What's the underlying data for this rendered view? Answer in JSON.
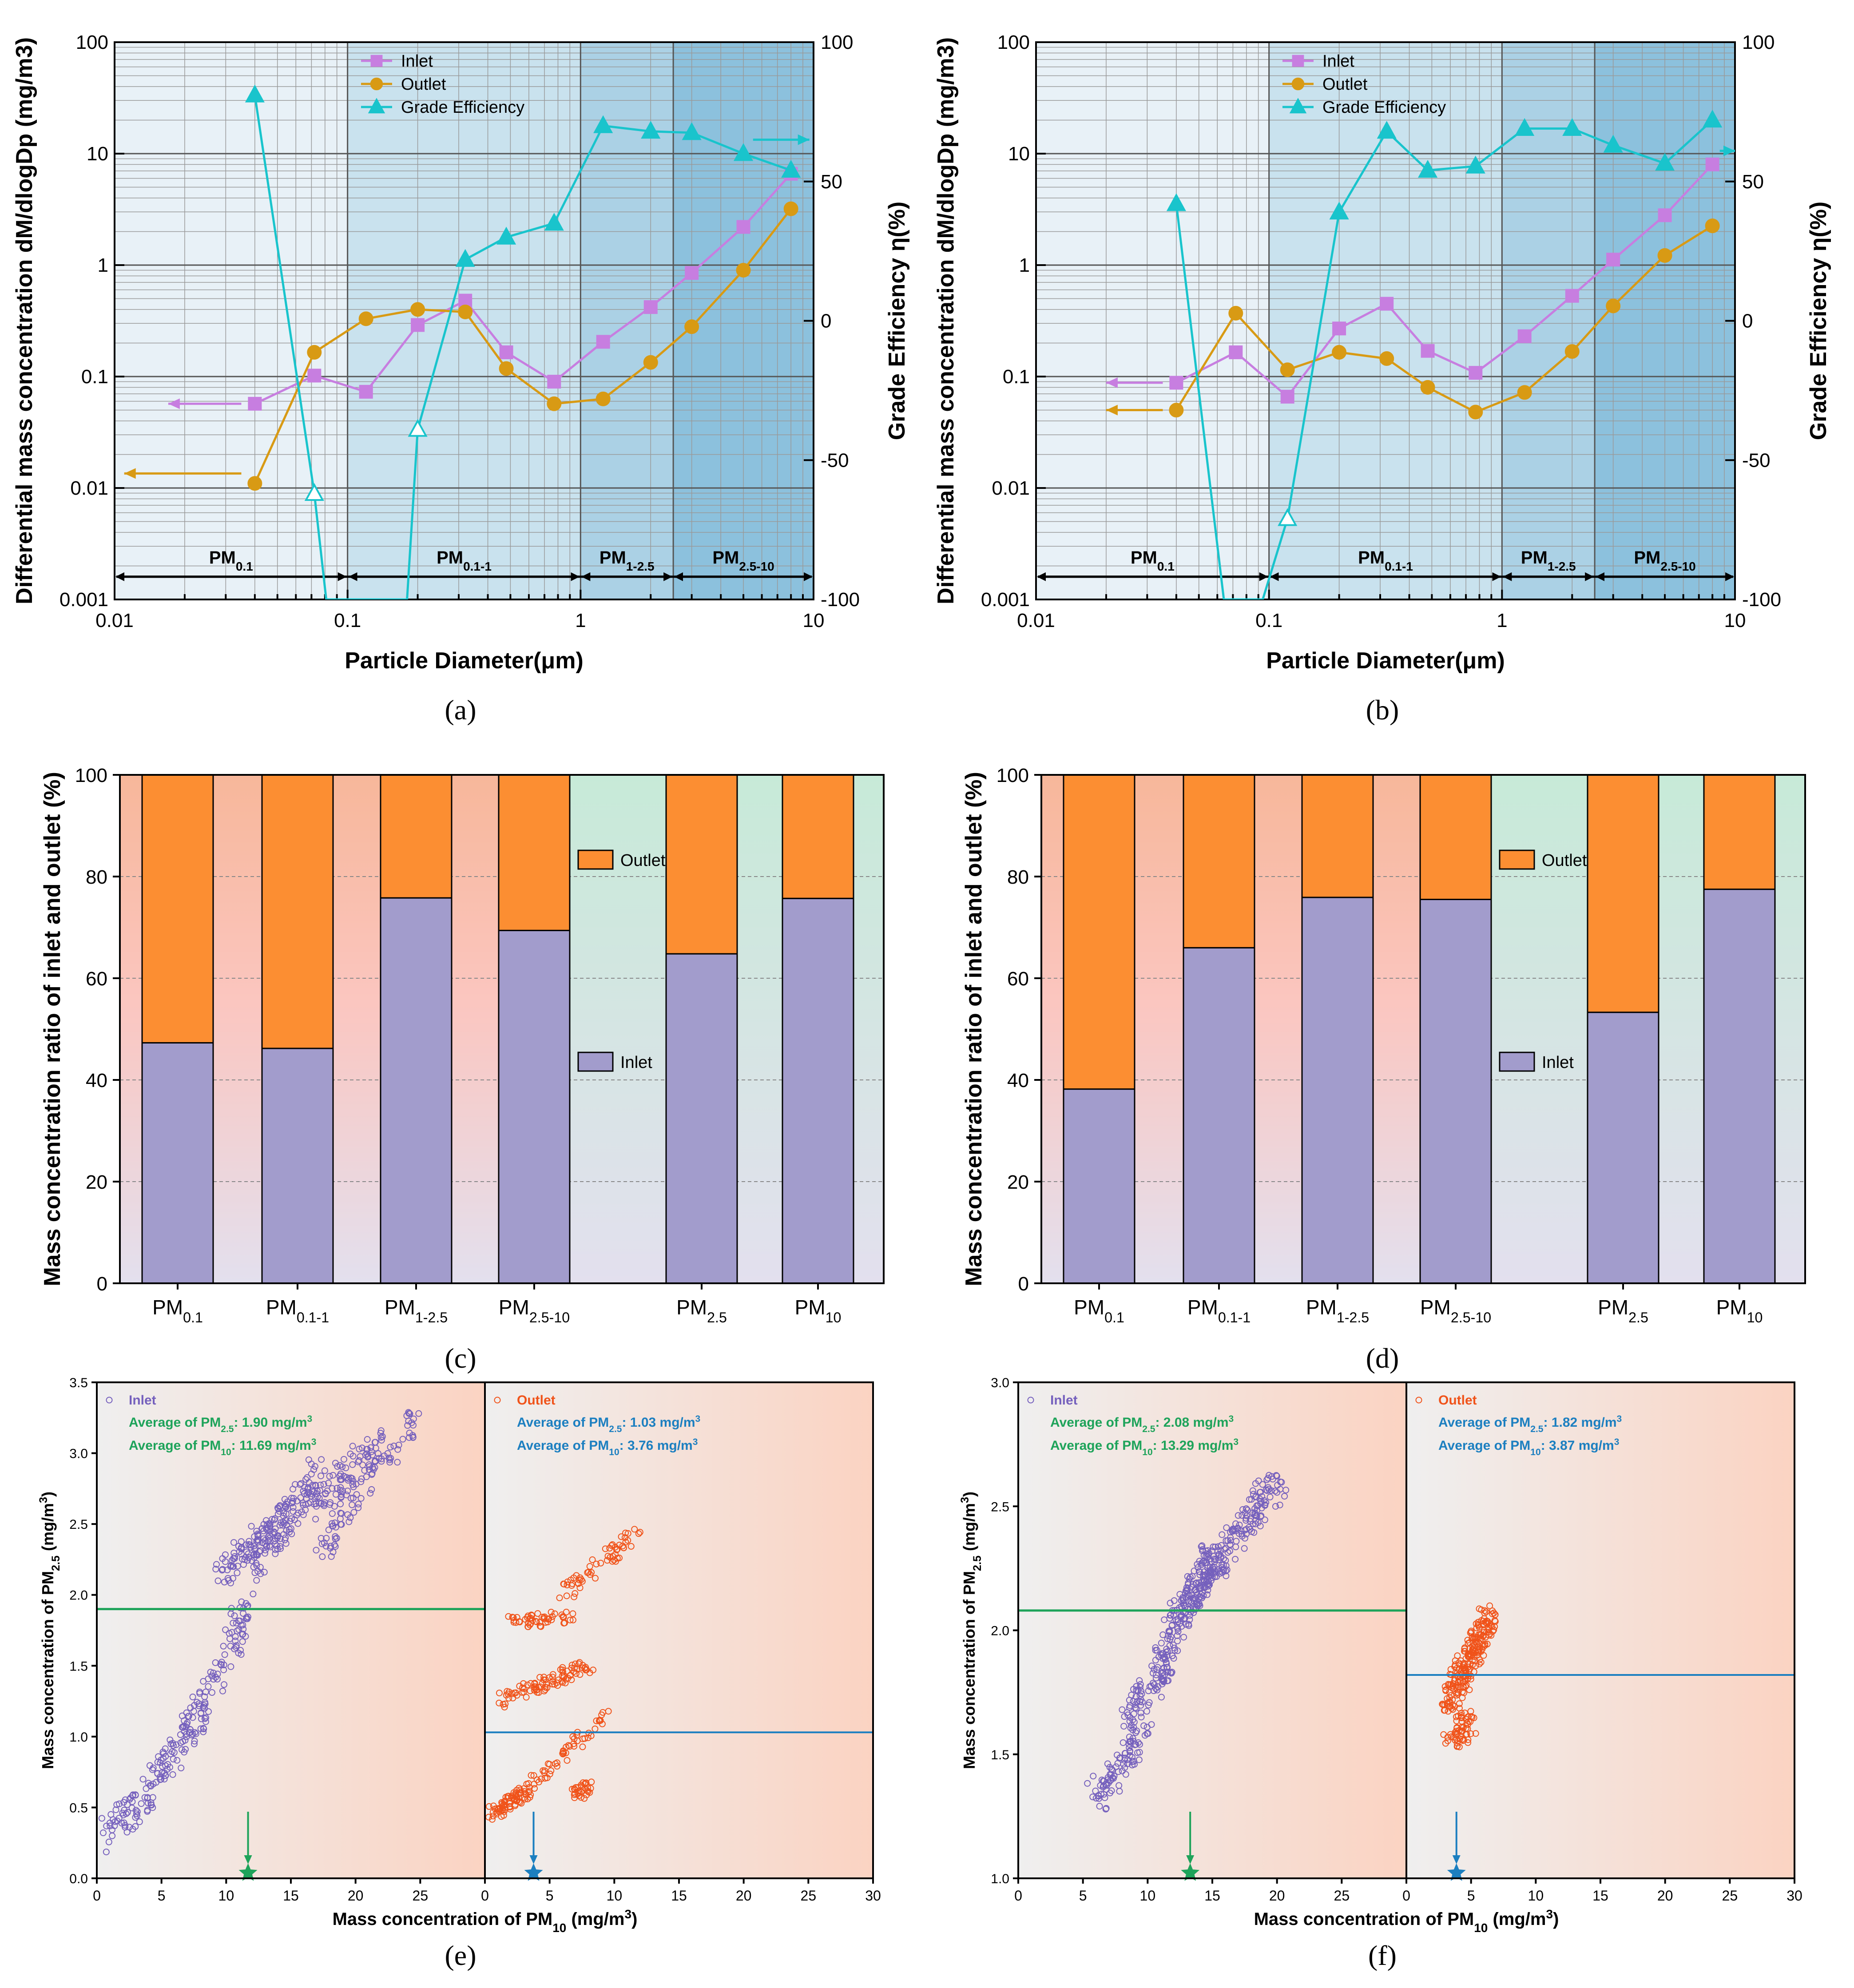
{
  "colors": {
    "inlet_line": "#c77ee0",
    "inlet_marker": "#c77ee0",
    "outlet": "#d89a14",
    "grade": "#19c4cc",
    "bar_inlet": "#a29ccc",
    "bar_outlet": "#fc8e32",
    "scatter_inlet": "#7560bd",
    "scatter_outlet": "#f0531a",
    "avg_green": "#1ea35a",
    "avg_blue": "#1c7fc0"
  },
  "chart_data": [
    {
      "id": "a",
      "type": "line",
      "caption": "(a)",
      "xlabel": "Particle Diameter(μm)",
      "ylabel": "Differential mass concentration dM/dlogDp (mg/m3)",
      "ylabel2": "Grade Efficiency η(%)",
      "xscale": "log",
      "xlim": [
        0.01,
        10
      ],
      "yscale": "log",
      "ylim": [
        0.001,
        100
      ],
      "y2lim": [
        -100,
        100
      ],
      "xticks": [
        "0.01",
        "0.1",
        "1",
        "10"
      ],
      "yticks": [
        "0.001",
        "0.01",
        "0.1",
        "1",
        "10",
        "100"
      ],
      "y2ticks": [
        "-100",
        "-50",
        "0",
        "50",
        "100"
      ],
      "legend": [
        "Inlet",
        "Outlet",
        "Grade Efficiency"
      ],
      "bands": [
        {
          "label": "PM0.1",
          "main": "PM",
          "sub": "0.1",
          "from": 0.01,
          "to": 0.1
        },
        {
          "label": "PM0.1-1",
          "main": "PM",
          "sub": "0.1-1",
          "from": 0.1,
          "to": 1
        },
        {
          "label": "PM1-2.5",
          "main": "PM",
          "sub": "1-2.5",
          "from": 1,
          "to": 2.5
        },
        {
          "label": "PM2.5-10",
          "main": "PM",
          "sub": "2.5-10",
          "from": 2.5,
          "to": 10
        }
      ],
      "series": [
        {
          "name": "Inlet",
          "axis": "left",
          "x": [
            0.04,
            0.072,
            0.12,
            0.2,
            0.32,
            0.48,
            0.77,
            1.25,
            2.0,
            3.0,
            5.0,
            8.0
          ],
          "values": [
            0.057,
            0.102,
            0.073,
            0.29,
            0.48,
            0.165,
            0.09,
            0.205,
            0.42,
            0.85,
            2.2,
            6.6
          ]
        },
        {
          "name": "Outlet",
          "axis": "left",
          "x": [
            0.04,
            0.072,
            0.12,
            0.2,
            0.32,
            0.48,
            0.77,
            1.25,
            2.0,
            3.0,
            5.0,
            8.0
          ],
          "values": [
            0.011,
            0.165,
            0.33,
            0.4,
            0.38,
            0.118,
            0.057,
            0.063,
            0.134,
            0.28,
            0.9,
            3.2
          ]
        },
        {
          "name": "Grade Efficiency",
          "axis": "right",
          "x": [
            0.04,
            0.072,
            0.081,
            0.18,
            0.2,
            0.32,
            0.48,
            0.77,
            1.25,
            2.0,
            3.0,
            5.0,
            8.0
          ],
          "values": [
            81,
            -62,
            -100,
            -100,
            -39,
            22,
            30,
            35,
            70,
            68,
            67.5,
            60,
            54
          ],
          "hollow": [
            1,
            4
          ],
          "offplot": [
            2,
            3
          ]
        }
      ],
      "axis_arrows": [
        {
          "series": "Inlet",
          "to": "left",
          "x_from": 0.035,
          "x_to": 0.017,
          "value": 0.057
        },
        {
          "series": "Outlet",
          "to": "left",
          "x_from": 0.035,
          "x_to": 0.011,
          "value": 0.0135
        },
        {
          "series": "Grade Efficiency",
          "to": "right",
          "x_from": 5.5,
          "x_to": 9.6,
          "value": 65
        }
      ]
    },
    {
      "id": "b",
      "type": "line",
      "caption": "(b)",
      "xlabel": "Particle Diameter(μm)",
      "ylabel": "Differential mass concentration dM/dlogDp (mg/m3)",
      "ylabel2": "Grade Efficiency η(%)",
      "xscale": "log",
      "xlim": [
        0.01,
        10
      ],
      "yscale": "log",
      "ylim": [
        0.001,
        100
      ],
      "y2lim": [
        -100,
        100
      ],
      "xticks": [
        "0.01",
        "0.1",
        "1",
        "10"
      ],
      "yticks": [
        "0.001",
        "0.01",
        "0.1",
        "1",
        "10",
        "100"
      ],
      "y2ticks": [
        "-100",
        "-50",
        "0",
        "50",
        "100"
      ],
      "legend": [
        "Inlet",
        "Outlet",
        "Grade Efficiency"
      ],
      "bands": [
        {
          "label": "PM0.1",
          "main": "PM",
          "sub": "0.1",
          "from": 0.01,
          "to": 0.1
        },
        {
          "label": "PM0.1-1",
          "main": "PM",
          "sub": "0.1-1",
          "from": 0.1,
          "to": 1
        },
        {
          "label": "PM1-2.5",
          "main": "PM",
          "sub": "1-2.5",
          "from": 1,
          "to": 2.5
        },
        {
          "label": "PM2.5-10",
          "main": "PM",
          "sub": "2.5-10",
          "from": 2.5,
          "to": 10
        }
      ],
      "series": [
        {
          "name": "Inlet",
          "axis": "left",
          "x": [
            0.04,
            0.072,
            0.12,
            0.2,
            0.32,
            0.48,
            0.77,
            1.25,
            2.0,
            3.0,
            5.0,
            8.0
          ],
          "values": [
            0.088,
            0.165,
            0.066,
            0.27,
            0.45,
            0.17,
            0.108,
            0.23,
            0.53,
            1.12,
            2.8,
            8.0
          ]
        },
        {
          "name": "Outlet",
          "axis": "left",
          "x": [
            0.04,
            0.072,
            0.12,
            0.2,
            0.32,
            0.48,
            0.77,
            1.25,
            2.0,
            3.0,
            5.0,
            8.0
          ],
          "values": [
            0.05,
            0.37,
            0.115,
            0.165,
            0.145,
            0.08,
            0.048,
            0.072,
            0.168,
            0.43,
            1.22,
            2.25
          ]
        },
        {
          "name": "Grade Efficiency",
          "axis": "right",
          "x": [
            0.04,
            0.064,
            0.094,
            0.12,
            0.2,
            0.32,
            0.48,
            0.77,
            1.25,
            2.0,
            3.0,
            5.0,
            8.0
          ],
          "values": [
            42,
            -100,
            -100,
            -71,
            39,
            68,
            54,
            55.5,
            69,
            69,
            63,
            56.5,
            72
          ],
          "hollow": [
            3
          ],
          "offplot": [
            1,
            2
          ]
        }
      ],
      "axis_arrows": [
        {
          "series": "Inlet",
          "to": "left",
          "x_from": 0.035,
          "x_to": 0.02,
          "value": 0.088
        },
        {
          "series": "Outlet",
          "to": "left",
          "x_from": 0.035,
          "x_to": 0.02,
          "value": 0.05
        },
        {
          "series": "Grade Efficiency",
          "to": "right",
          "x_from": 8.6,
          "x_to": 10,
          "value": 61
        }
      ]
    },
    {
      "id": "c",
      "type": "bar",
      "stacked": true,
      "caption": "(c)",
      "ylabel": "Mass concentration ratio of inlet and outlet (%)",
      "ylim": [
        0,
        100
      ],
      "yticks": [
        "0",
        "20",
        "40",
        "60",
        "80",
        "100"
      ],
      "categories": [
        {
          "label": "PM0.1",
          "main": "PM",
          "sub": "0.1"
        },
        {
          "label": "PM0.1-1",
          "main": "PM",
          "sub": "0.1-1"
        },
        {
          "label": "PM1-2.5",
          "main": "PM",
          "sub": "1-2.5"
        },
        {
          "label": "PM2.5-10",
          "main": "PM",
          "sub": "2.5-10"
        },
        {
          "label": "PM2.5",
          "main": "PM",
          "sub": "2.5"
        },
        {
          "label": "PM10",
          "main": "PM",
          "sub": "10"
        }
      ],
      "series": [
        {
          "name": "Inlet",
          "values": [
            47.3,
            46.2,
            75.8,
            69.4,
            64.8,
            75.7
          ]
        },
        {
          "name": "Outlet",
          "values": [
            52.7,
            53.8,
            24.2,
            30.6,
            35.2,
            24.3
          ]
        }
      ],
      "legend": [
        "Outlet",
        "Inlet"
      ]
    },
    {
      "id": "d",
      "type": "bar",
      "stacked": true,
      "caption": "(d)",
      "ylabel": "Mass concentration ratio of inlet and outlet (%)",
      "ylim": [
        0,
        100
      ],
      "yticks": [
        "0",
        "20",
        "40",
        "60",
        "80",
        "100"
      ],
      "categories": [
        {
          "label": "PM0.1",
          "main": "PM",
          "sub": "0.1"
        },
        {
          "label": "PM0.1-1",
          "main": "PM",
          "sub": "0.1-1"
        },
        {
          "label": "PM1-2.5",
          "main": "PM",
          "sub": "1-2.5"
        },
        {
          "label": "PM2.5-10",
          "main": "PM",
          "sub": "2.5-10"
        },
        {
          "label": "PM2.5",
          "main": "PM",
          "sub": "2.5"
        },
        {
          "label": "PM10",
          "main": "PM",
          "sub": "10"
        }
      ],
      "series": [
        {
          "name": "Inlet",
          "values": [
            38.2,
            66.0,
            75.9,
            75.5,
            53.3,
            77.5
          ]
        },
        {
          "name": "Outlet",
          "values": [
            61.8,
            34.0,
            24.1,
            24.5,
            46.7,
            22.5
          ]
        }
      ],
      "legend": [
        "Outlet",
        "Inlet"
      ]
    },
    {
      "id": "e",
      "type": "scatter",
      "caption": "(e)",
      "xlabel": "Mass concentration of PM10 (mg/m3)",
      "ylabel": "Mass concentration of PM2.5 (mg/m3)",
      "xlim": [
        0,
        30
      ],
      "ylim": [
        0,
        3.5
      ],
      "xticks_left": [
        "0",
        "5",
        "10",
        "15",
        "20",
        "25"
      ],
      "xticks_right": [
        "0",
        "5",
        "10",
        "15",
        "20",
        "25",
        "30"
      ],
      "yticks": [
        "0.0",
        "0.5",
        "1.0",
        "1.5",
        "2.0",
        "2.5",
        "3.0",
        "3.5"
      ],
      "inlet": {
        "legend": "Inlet",
        "avg_pm25": 1.9,
        "avg_pm10": 11.69,
        "lines": [
          {
            "prefix": "Average of PM",
            "sub": "2.5",
            "text": ": 1.90 mg/m",
            "sup": "3"
          },
          {
            "prefix": "Average of PM",
            "sub": "10",
            "text": ": 11.69 mg/m",
            "sup": "3"
          }
        ],
        "segments": [
          [
            0.5,
            0.3,
            3.5,
            0.55,
            50
          ],
          [
            3.5,
            0.55,
            9.0,
            1.3,
            120
          ],
          [
            9,
            1.3,
            11.5,
            1.95,
            60
          ],
          [
            9.5,
            2.15,
            15,
            2.55,
            90
          ],
          [
            12,
            2.2,
            17,
            2.9,
            110
          ],
          [
            16,
            2.6,
            22,
            3.05,
            110
          ],
          [
            17,
            2.3,
            25,
            3.3,
            80
          ]
        ],
        "noise": [
          0.7,
          0.12
        ]
      },
      "outlet": {
        "legend": "Outlet",
        "avg_pm25": 1.03,
        "avg_pm10": 3.76,
        "lines": [
          {
            "prefix": "Average of PM",
            "sub": "2.5",
            "text": ": 1.03 mg/m",
            "sup": "3"
          },
          {
            "prefix": "Average of PM",
            "sub": "10",
            "text": ": 3.76 mg/m",
            "sup": "3"
          }
        ],
        "segments": [
          [
            0.5,
            0.45,
            3,
            0.6,
            70
          ],
          [
            3,
            0.6,
            9.5,
            1.15,
            60
          ],
          [
            1,
            1.25,
            8,
            1.5,
            90
          ],
          [
            2,
            1.8,
            7,
            1.85,
            50
          ],
          [
            6,
            2.0,
            12,
            2.45,
            60
          ],
          [
            7,
            0.6,
            8,
            0.65,
            30
          ]
        ],
        "noise": [
          0.5,
          0.05
        ]
      }
    },
    {
      "id": "f",
      "type": "scatter",
      "caption": "(f)",
      "xlabel": "Mass concentration of PM10 (mg/m3)",
      "ylabel": "Mass concentration of PM2.5 (mg/m3)",
      "xlim": [
        0,
        30
      ],
      "ylim": [
        1.0,
        3.0
      ],
      "xticks_left": [
        "0",
        "5",
        "10",
        "15",
        "20",
        "25"
      ],
      "xticks_right": [
        "0",
        "5",
        "10",
        "15",
        "20",
        "25",
        "30"
      ],
      "yticks": [
        "1.0",
        "1.5",
        "2.0",
        "2.5",
        "3.0"
      ],
      "inlet": {
        "legend": "Inlet",
        "avg_pm25": 2.08,
        "avg_pm10": 13.29,
        "lines": [
          {
            "prefix": "Average of PM",
            "sub": "2.5",
            "text": ": 2.08 mg/m",
            "sup": "3"
          },
          {
            "prefix": "Average of PM",
            "sub": "10",
            "text": ": 13.29 mg/m",
            "sup": "3"
          }
        ],
        "segments": [
          [
            6,
            1.33,
            10,
            1.6,
            90
          ],
          [
            8,
            1.6,
            12,
            1.9,
            90
          ],
          [
            11,
            1.9,
            15,
            2.3,
            150
          ],
          [
            13,
            2.1,
            20,
            2.6,
            200
          ]
        ],
        "noise": [
          0.8,
          0.06
        ]
      },
      "outlet": {
        "legend": "Outlet",
        "avg_pm25": 1.82,
        "avg_pm10": 3.87,
        "lines": [
          {
            "prefix": "Average of PM",
            "sub": "2.5",
            "text": ": 1.82 mg/m",
            "sup": "3"
          },
          {
            "prefix": "Average of PM",
            "sub": "10",
            "text": ": 3.87 mg/m",
            "sup": "3"
          }
        ],
        "segments": [
          [
            3.3,
            1.52,
            5,
            1.65,
            60
          ],
          [
            3.3,
            1.7,
            6.5,
            2.07,
            220
          ]
        ],
        "noise": [
          0.7,
          0.05
        ]
      }
    }
  ]
}
